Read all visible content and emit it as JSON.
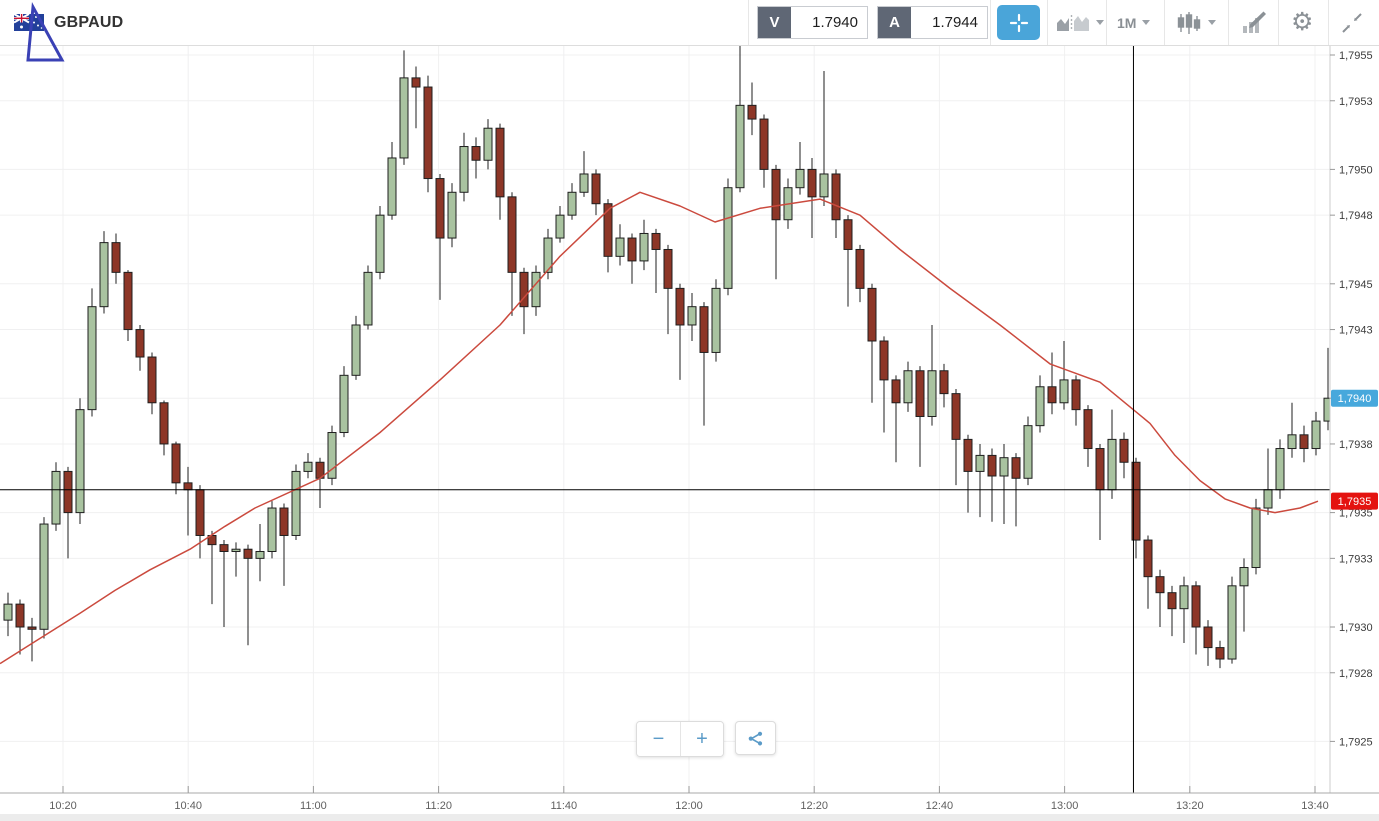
{
  "header": {
    "symbol": "GBPAUD",
    "sell_button": {
      "label": "V",
      "value": "1.7940"
    },
    "buy_button": {
      "label": "A",
      "value": "1.7944"
    },
    "crosshair_active": true,
    "timeframe": "1M",
    "accent_blue": "#4aa5d9",
    "icon_names": [
      "compare-charts-icon",
      "timeframe-dropdown",
      "chart-type-candles-icon",
      "drawing-tools-icon",
      "settings-gear-icon",
      "collapse-icon"
    ]
  },
  "controls": {
    "zoom_out": "−",
    "zoom_in": "+"
  },
  "overlay_annotation": {
    "type": "triangle-outline",
    "color": "#3a41b5"
  },
  "chart_data": {
    "type": "candlestick",
    "symbol": "GBPAUD",
    "timeframe": "1M",
    "grid": true,
    "price_axis": {
      "labels": [
        "1,7955",
        "1,7953",
        "1,7950",
        "1,7948",
        "1,7945",
        "1,7943",
        "1,7940",
        "1,7938",
        "1,7935",
        "1,7933",
        "1,7930",
        "1,7928",
        "1,7925"
      ],
      "values": [
        1.7955,
        1.7953,
        1.795,
        1.7948,
        1.7945,
        1.7943,
        1.794,
        1.7938,
        1.7935,
        1.7933,
        1.793,
        1.7928,
        1.7925
      ],
      "range": [
        1.7925,
        1.7955
      ]
    },
    "time_axis": {
      "labels": [
        "10:20",
        "10:40",
        "11:00",
        "11:20",
        "11:40",
        "12:00",
        "12:20",
        "12:40",
        "13:00",
        "13:20",
        "13:40"
      ]
    },
    "bid_badge": {
      "label": "1,7940",
      "price": 1.794,
      "color": "#47a8dc"
    },
    "last_badge": {
      "label": "1,7935",
      "price": 1.79355,
      "color": "#e41310"
    },
    "position_line_price": 1.7936,
    "vertical_marker_time": "13:11",
    "ma_color": "#cb4a3e",
    "bull_color": "#a9c3a0",
    "bear_color": "#8d3627",
    "candle_outline": "#1f1f1f",
    "candles": [
      [
        1.79303,
        1.79315,
        1.79296,
        1.7931
      ],
      [
        1.7931,
        1.79312,
        1.79288,
        1.793
      ],
      [
        1.793,
        1.79304,
        1.79285,
        1.79299
      ],
      [
        1.79299,
        1.79348,
        1.79295,
        1.79345
      ],
      [
        1.79345,
        1.79372,
        1.79342,
        1.79368
      ],
      [
        1.79368,
        1.7937,
        1.7933,
        1.7935
      ],
      [
        1.7935,
        1.794,
        1.79345,
        1.79395
      ],
      [
        1.79395,
        1.79448,
        1.79392,
        1.7944
      ],
      [
        1.7944,
        1.79473,
        1.79437,
        1.79468
      ],
      [
        1.79468,
        1.79472,
        1.7945,
        1.79455
      ],
      [
        1.79455,
        1.79456,
        1.79425,
        1.7943
      ],
      [
        1.7943,
        1.79432,
        1.79412,
        1.79418
      ],
      [
        1.79418,
        1.7942,
        1.79393,
        1.79398
      ],
      [
        1.79398,
        1.79399,
        1.79375,
        1.7938
      ],
      [
        1.7938,
        1.79381,
        1.79358,
        1.79363
      ],
      [
        1.79363,
        1.7937,
        1.7934,
        1.7936
      ],
      [
        1.7936,
        1.79362,
        1.7933,
        1.7934
      ],
      [
        1.7934,
        1.79342,
        1.7931,
        1.79336
      ],
      [
        1.79336,
        1.79338,
        1.793,
        1.79333
      ],
      [
        1.79333,
        1.79337,
        1.79322,
        1.79334
      ],
      [
        1.79334,
        1.79336,
        1.79292,
        1.7933
      ],
      [
        1.7933,
        1.79345,
        1.7932,
        1.79333
      ],
      [
        1.79333,
        1.79355,
        1.7933,
        1.79352
      ],
      [
        1.79352,
        1.79354,
        1.79318,
        1.7934
      ],
      [
        1.7934,
        1.79371,
        1.79338,
        1.79368
      ],
      [
        1.79368,
        1.79376,
        1.79365,
        1.79372
      ],
      [
        1.79372,
        1.79374,
        1.79352,
        1.79365
      ],
      [
        1.79365,
        1.79388,
        1.79362,
        1.79385
      ],
      [
        1.79385,
        1.79414,
        1.79383,
        1.7941
      ],
      [
        1.7941,
        1.79436,
        1.79408,
        1.79432
      ],
      [
        1.79432,
        1.79458,
        1.7943,
        1.79455
      ],
      [
        1.79455,
        1.79484,
        1.79452,
        1.7948
      ],
      [
        1.7948,
        1.79512,
        1.79478,
        1.79505
      ],
      [
        1.79505,
        1.79552,
        1.79502,
        1.7954
      ],
      [
        1.7954,
        1.79545,
        1.79518,
        1.79536
      ],
      [
        1.79536,
        1.79541,
        1.7949,
        1.79496
      ],
      [
        1.79496,
        1.79498,
        1.79443,
        1.7947
      ],
      [
        1.7947,
        1.79494,
        1.79466,
        1.7949
      ],
      [
        1.7949,
        1.79516,
        1.79486,
        1.7951
      ],
      [
        1.7951,
        1.79514,
        1.79496,
        1.79504
      ],
      [
        1.79504,
        1.79522,
        1.795,
        1.79518
      ],
      [
        1.79518,
        1.7952,
        1.79478,
        1.79488
      ],
      [
        1.79488,
        1.7949,
        1.79436,
        1.79455
      ],
      [
        1.79455,
        1.79457,
        1.79428,
        1.7944
      ],
      [
        1.7944,
        1.79458,
        1.79436,
        1.79455
      ],
      [
        1.79455,
        1.79474,
        1.79452,
        1.7947
      ],
      [
        1.7947,
        1.79484,
        1.79468,
        1.7948
      ],
      [
        1.7948,
        1.79494,
        1.79478,
        1.7949
      ],
      [
        1.7949,
        1.79508,
        1.79488,
        1.79498
      ],
      [
        1.79498,
        1.795,
        1.7948,
        1.79485
      ],
      [
        1.79485,
        1.79487,
        1.79455,
        1.79462
      ],
      [
        1.79462,
        1.79476,
        1.79458,
        1.7947
      ],
      [
        1.7947,
        1.79472,
        1.7945,
        1.7946
      ],
      [
        1.7946,
        1.79478,
        1.79456,
        1.79472
      ],
      [
        1.79472,
        1.79474,
        1.79446,
        1.79465
      ],
      [
        1.79465,
        1.79467,
        1.79428,
        1.79448
      ],
      [
        1.79448,
        1.7945,
        1.79408,
        1.79432
      ],
      [
        1.79432,
        1.79446,
        1.79425,
        1.7944
      ],
      [
        1.7944,
        1.79442,
        1.79388,
        1.7942
      ],
      [
        1.7942,
        1.79452,
        1.79416,
        1.79448
      ],
      [
        1.79448,
        1.79496,
        1.79445,
        1.79492
      ],
      [
        1.79492,
        1.79554,
        1.7949,
        1.79528
      ],
      [
        1.79528,
        1.79538,
        1.79515,
        1.79522
      ],
      [
        1.79522,
        1.79524,
        1.79492,
        1.795
      ],
      [
        1.795,
        1.79502,
        1.79452,
        1.79478
      ],
      [
        1.79478,
        1.79496,
        1.79474,
        1.79492
      ],
      [
        1.79492,
        1.79512,
        1.79489,
        1.795
      ],
      [
        1.795,
        1.79505,
        1.7947,
        1.79488
      ],
      [
        1.79488,
        1.79543,
        1.79484,
        1.79498
      ],
      [
        1.79498,
        1.795,
        1.7947,
        1.79478
      ],
      [
        1.79478,
        1.7948,
        1.7944,
        1.79465
      ],
      [
        1.79465,
        1.79467,
        1.79442,
        1.79448
      ],
      [
        1.79448,
        1.7945,
        1.79398,
        1.79425
      ],
      [
        1.79425,
        1.79427,
        1.79385,
        1.79408
      ],
      [
        1.79408,
        1.7941,
        1.79372,
        1.79398
      ],
      [
        1.79398,
        1.79416,
        1.79394,
        1.79412
      ],
      [
        1.79412,
        1.79414,
        1.7937,
        1.79392
      ],
      [
        1.79392,
        1.79432,
        1.79388,
        1.79412
      ],
      [
        1.79412,
        1.79415,
        1.79396,
        1.79402
      ],
      [
        1.79402,
        1.79404,
        1.79362,
        1.79382
      ],
      [
        1.79382,
        1.79384,
        1.7935,
        1.79368
      ],
      [
        1.79368,
        1.7938,
        1.79348,
        1.79375
      ],
      [
        1.79375,
        1.79378,
        1.79346,
        1.79366
      ],
      [
        1.79366,
        1.7938,
        1.79345,
        1.79374
      ],
      [
        1.79374,
        1.79376,
        1.79344,
        1.79365
      ],
      [
        1.79365,
        1.79392,
        1.79362,
        1.79388
      ],
      [
        1.79388,
        1.7941,
        1.79385,
        1.79405
      ],
      [
        1.79405,
        1.7942,
        1.79393,
        1.79398
      ],
      [
        1.79398,
        1.79425,
        1.79395,
        1.79408
      ],
      [
        1.79408,
        1.7941,
        1.79388,
        1.79395
      ],
      [
        1.79395,
        1.79397,
        1.7937,
        1.79378
      ],
      [
        1.79378,
        1.7938,
        1.79338,
        1.7936
      ],
      [
        1.7936,
        1.79395,
        1.79356,
        1.79382
      ],
      [
        1.79382,
        1.79385,
        1.79365,
        1.79372
      ],
      [
        1.79372,
        1.79374,
        1.7933,
        1.79338
      ],
      [
        1.79338,
        1.7934,
        1.79308,
        1.79322
      ],
      [
        1.79322,
        1.79325,
        1.793,
        1.79315
      ],
      [
        1.79315,
        1.79318,
        1.79296,
        1.79308
      ],
      [
        1.79308,
        1.79322,
        1.79293,
        1.79318
      ],
      [
        1.79318,
        1.7932,
        1.79288,
        1.793
      ],
      [
        1.793,
        1.79303,
        1.79283,
        1.79291
      ],
      [
        1.79291,
        1.79294,
        1.79282,
        1.79286
      ],
      [
        1.79286,
        1.79322,
        1.79284,
        1.79318
      ],
      [
        1.79318,
        1.7933,
        1.79298,
        1.79326
      ],
      [
        1.79326,
        1.79356,
        1.79323,
        1.79352
      ],
      [
        1.79352,
        1.79378,
        1.79349,
        1.7936
      ],
      [
        1.7936,
        1.79382,
        1.79356,
        1.79378
      ],
      [
        1.79378,
        1.79398,
        1.79374,
        1.79384
      ],
      [
        1.79384,
        1.79388,
        1.79372,
        1.79378
      ],
      [
        1.79378,
        1.79394,
        1.79375,
        1.7939
      ],
      [
        1.7939,
        1.79422,
        1.79386,
        1.794
      ]
    ],
    "ma_points": [
      [
        0,
        1.79284
      ],
      [
        40,
        1.79295
      ],
      [
        80,
        1.79306
      ],
      [
        115,
        1.79316
      ],
      [
        150,
        1.79325
      ],
      [
        190,
        1.79334
      ],
      [
        225,
        1.79344
      ],
      [
        255,
        1.79352
      ],
      [
        320,
        1.79365
      ],
      [
        380,
        1.79385
      ],
      [
        440,
        1.79408
      ],
      [
        500,
        1.79432
      ],
      [
        560,
        1.79462
      ],
      [
        610,
        1.79483
      ],
      [
        640,
        1.7949
      ],
      [
        680,
        1.79484
      ],
      [
        715,
        1.79477
      ],
      [
        760,
        1.79483
      ],
      [
        820,
        1.79487
      ],
      [
        860,
        1.7948
      ],
      [
        900,
        1.79465
      ],
      [
        950,
        1.79448
      ],
      [
        1000,
        1.79432
      ],
      [
        1050,
        1.79415
      ],
      [
        1100,
        1.79407
      ],
      [
        1125,
        1.79398
      ],
      [
        1150,
        1.79389
      ],
      [
        1175,
        1.79375
      ],
      [
        1200,
        1.79364
      ],
      [
        1225,
        1.79356
      ],
      [
        1250,
        1.79352
      ],
      [
        1275,
        1.7935
      ],
      [
        1300,
        1.79352
      ],
      [
        1318,
        1.79355
      ]
    ]
  }
}
